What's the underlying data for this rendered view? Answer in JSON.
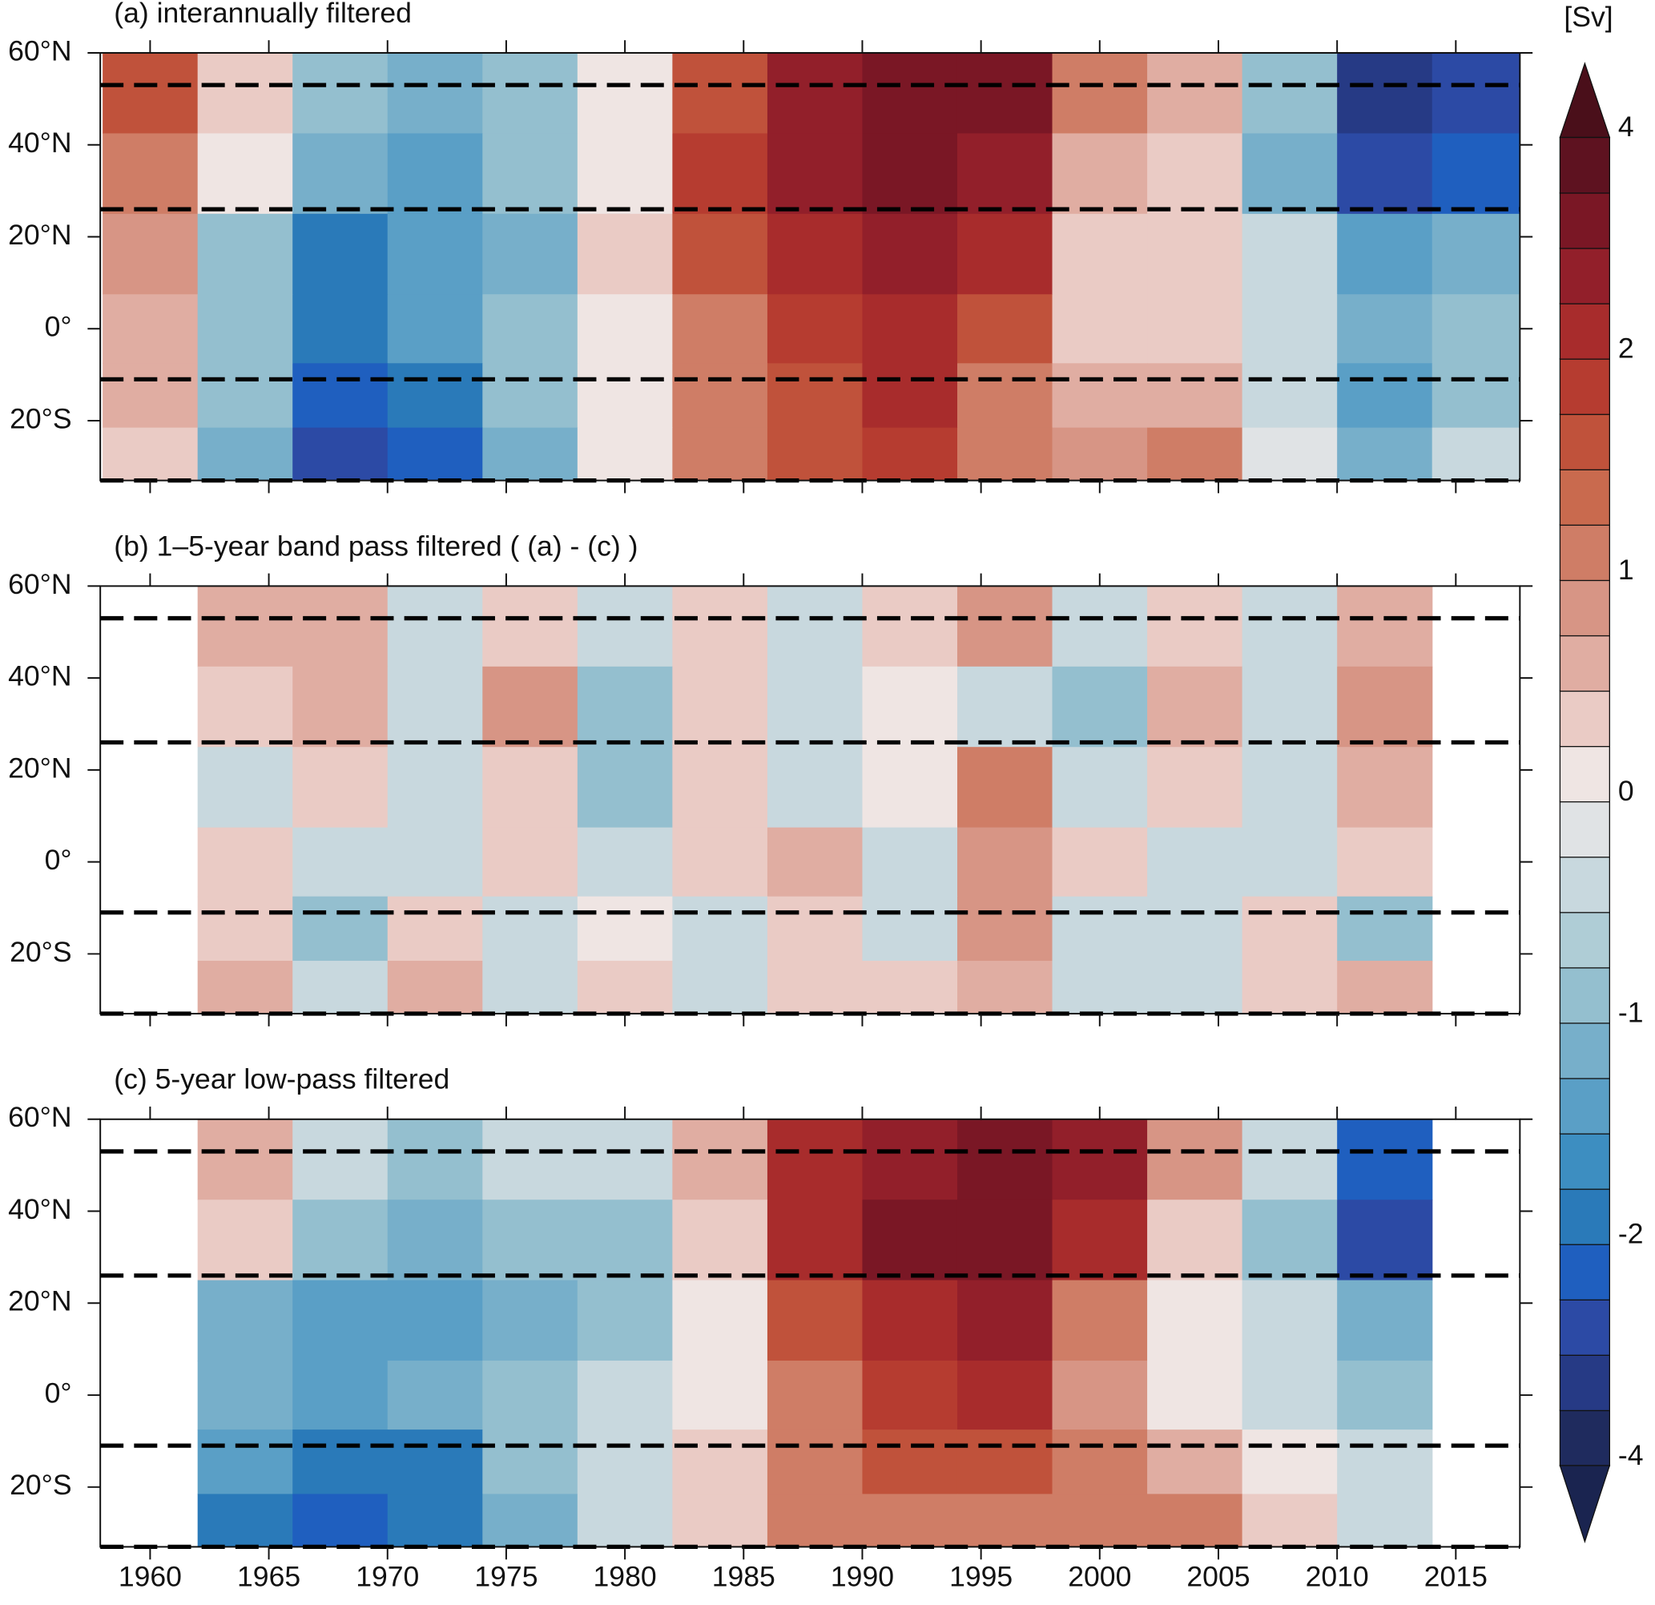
{
  "chart_data": [
    {
      "type": "heatmap",
      "title": "(a) interannually filtered",
      "xlim": [
        1957.9,
        2017.7
      ],
      "xticks": [
        1960,
        1965,
        1970,
        1975,
        1980,
        1985,
        1990,
        1995,
        2000,
        2005,
        2010,
        2015
      ],
      "ylim": [
        -33,
        60
      ],
      "yticks": [
        {
          "value": 60,
          "label": "60°N"
        },
        {
          "value": 40,
          "label": "40°N"
        },
        {
          "value": 20,
          "label": "20°N"
        },
        {
          "value": 0,
          "label": "0°"
        },
        {
          "value": -20,
          "label": "20°S"
        }
      ],
      "hlines": [
        53,
        26,
        -11,
        -33
      ],
      "x": [
        1960,
        1964,
        1968,
        1972,
        1976,
        1980,
        1984,
        1988,
        1992,
        1996,
        2000,
        2004,
        2008,
        2012,
        2016
      ],
      "y": [
        50,
        35,
        15,
        0,
        -15,
        -28
      ],
      "z": [
        [
          1.5,
          0.3,
          -1.0,
          -1.2,
          -0.8,
          0.2,
          1.5,
          2.5,
          3,
          3.2,
          1.0,
          0.5,
          -1,
          -3.5,
          -3
        ],
        [
          1.0,
          0,
          -1.2,
          -1.5,
          -1.0,
          0.2,
          1.8,
          2.8,
          3,
          2.5,
          0.5,
          0.3,
          -1.2,
          -3,
          -2.5
        ],
        [
          0.8,
          -1.0,
          -1.8,
          -1.5,
          -1.2,
          0.3,
          1.5,
          2.2,
          2.8,
          2,
          0.3,
          0.3,
          -0.5,
          -1.5,
          -1.2
        ],
        [
          0.5,
          -0.8,
          -2,
          -1.5,
          -0.8,
          0.2,
          1.0,
          1.8,
          2.2,
          1.5,
          0.3,
          0.3,
          -0.3,
          -1.2,
          -1
        ],
        [
          0.5,
          -1,
          -2.5,
          -2,
          -1,
          0,
          1.0,
          1.5,
          2,
          1.2,
          0.5,
          0.5,
          -0.3,
          -1.5,
          -0.8
        ],
        [
          0.3,
          -1.2,
          -3,
          -2.5,
          -1.2,
          0,
          1,
          1.5,
          1.8,
          1.2,
          0.8,
          1,
          -0.2,
          -1.2,
          -0.5
        ]
      ]
    },
    {
      "type": "heatmap",
      "title": "(b) 1–5-year band pass filtered ( (a) - (c) )",
      "xlim": [
        1957.9,
        2017.7
      ],
      "xticks": [
        1960,
        1965,
        1970,
        1975,
        1980,
        1985,
        1990,
        1995,
        2000,
        2005,
        2010,
        2015
      ],
      "ylim": [
        -33,
        60
      ],
      "yticks": [
        {
          "value": 60,
          "label": "60°N"
        },
        {
          "value": 40,
          "label": "40°N"
        },
        {
          "value": 20,
          "label": "20°N"
        },
        {
          "value": 0,
          "label": "0°"
        },
        {
          "value": -20,
          "label": "20°S"
        }
      ],
      "hlines": [
        53,
        26,
        -11,
        -33
      ],
      "x": [
        1964,
        1968,
        1972,
        1976,
        1980,
        1984,
        1988,
        1992,
        1996,
        2000,
        2004,
        2008,
        2012
      ],
      "y": [
        50,
        35,
        15,
        0,
        -15,
        -28
      ],
      "z": [
        [
          0.5,
          0.5,
          -0.3,
          0.3,
          -0.5,
          0.3,
          -0.3,
          0.3,
          0.8,
          -0.5,
          0.3,
          -0.3,
          0.5
        ],
        [
          0.3,
          0.5,
          -0.5,
          0.8,
          -0.8,
          0.3,
          -0.5,
          0.2,
          -0.5,
          -0.8,
          0.5,
          -0.5,
          0.8
        ],
        [
          -0.3,
          0.3,
          -0.5,
          0.3,
          -0.8,
          0.3,
          -0.3,
          0.2,
          1.0,
          -0.3,
          0.3,
          -0.5,
          0.5
        ],
        [
          0.3,
          -0.3,
          -0.3,
          0.3,
          -0.3,
          0.3,
          0.5,
          -0.3,
          0.8,
          0.3,
          -0.3,
          -0.5,
          0.3
        ],
        [
          0.3,
          -0.8,
          0.3,
          -0.3,
          0.2,
          -0.5,
          0.3,
          -0.5,
          0.8,
          -0.3,
          -0.5,
          0.3,
          -0.8
        ],
        [
          0.5,
          -0.5,
          0.5,
          -0.3,
          0.3,
          -0.5,
          0.3,
          0.3,
          0.5,
          -0.5,
          -0.3,
          0.3,
          0.5
        ]
      ]
    },
    {
      "type": "heatmap",
      "title": "(c) 5-year low-pass filtered",
      "xlim": [
        1957.9,
        2017.7
      ],
      "xticks": [
        1960,
        1965,
        1970,
        1975,
        1980,
        1985,
        1990,
        1995,
        2000,
        2005,
        2010,
        2015
      ],
      "xtick_labels": true,
      "ylim": [
        -33,
        60
      ],
      "yticks": [
        {
          "value": 60,
          "label": "60°N"
        },
        {
          "value": 40,
          "label": "40°N"
        },
        {
          "value": 20,
          "label": "20°N"
        },
        {
          "value": 0,
          "label": "0°"
        },
        {
          "value": -20,
          "label": "20°S"
        }
      ],
      "hlines": [
        53,
        26,
        -11,
        -33
      ],
      "x": [
        1964,
        1968,
        1972,
        1976,
        1980,
        1984,
        1988,
        1992,
        1996,
        2000,
        2004,
        2008,
        2012
      ],
      "y": [
        50,
        35,
        15,
        0,
        -15,
        -28
      ],
      "z": [
        [
          0.5,
          -0.5,
          -0.8,
          -0.5,
          -0.3,
          0.5,
          2.0,
          2.8,
          3.0,
          2.5,
          0.8,
          -0.5,
          -2.5
        ],
        [
          0.3,
          -0.8,
          -1.2,
          -1.0,
          -0.8,
          0.3,
          2.0,
          3.2,
          3.3,
          2.0,
          0.3,
          -0.8,
          -3
        ],
        [
          -1.2,
          -1.5,
          -1.5,
          -1.2,
          -0.8,
          0.2,
          1.5,
          2.2,
          2.5,
          1.0,
          0,
          -0.5,
          -1.2
        ],
        [
          -1.2,
          -1.5,
          -1.2,
          -1.0,
          -0.5,
          0.2,
          1.2,
          1.8,
          2.0,
          0.8,
          0,
          -0.3,
          -0.8
        ],
        [
          -1.5,
          -2.0,
          -1.8,
          -1.0,
          -0.3,
          0.3,
          1.2,
          1.5,
          1.5,
          1.0,
          0.5,
          0,
          -0.5
        ],
        [
          -1.8,
          -2.5,
          -2.0,
          -1.2,
          -0.3,
          0.3,
          1.0,
          1.2,
          1.2,
          1.0,
          1.0,
          0.3,
          -0.3
        ]
      ]
    },
    {
      "type": "colorbar",
      "label": "[Sv]",
      "levels": [
        -4,
        -3.5,
        -3,
        -2.5,
        -2,
        -1.75,
        -1.5,
        -1.25,
        -1,
        -0.75,
        -0.5,
        -0.25,
        0,
        0.25,
        0.5,
        0.75,
        1,
        1.25,
        1.5,
        1.75,
        2,
        2.5,
        3,
        3.5,
        4
      ],
      "colors": [
        "#1f2b5e",
        "#263a85",
        "#2c4aa5",
        "#1f5fbf",
        "#2a7ab9",
        "#3d8ec1",
        "#5a9fc6",
        "#77afca",
        "#94bfcf",
        "#afcdd6",
        "#c8d8de",
        "#e0e3e5",
        "#efe5e3",
        "#eacbc5",
        "#e0ada2",
        "#d79585",
        "#cf7d66",
        "#c96a4e",
        "#c0523b",
        "#b63c30",
        "#a82c2c",
        "#921f2a",
        "#7a1725",
        "#5e1220"
      ],
      "under_color": "#1a2450",
      "over_color": "#4a0f1a",
      "ticks": [
        4,
        2,
        1,
        0,
        -1,
        -2,
        -4
      ]
    }
  ]
}
